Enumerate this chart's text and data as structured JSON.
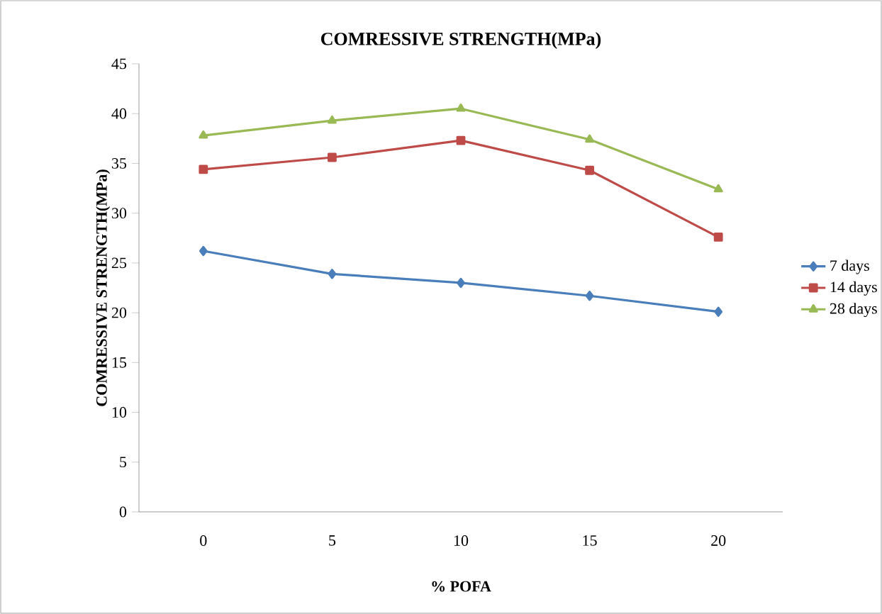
{
  "chart_data": {
    "type": "line",
    "title": "COMRESSIVE STRENGTH(MPa)",
    "xlabel": "% POFA",
    "ylabel": "COMRESSIVE STRENGTH(MPa)",
    "categories": [
      "0",
      "5",
      "10",
      "15",
      "20"
    ],
    "series": [
      {
        "name": "7 days",
        "color": "#4a7ebb",
        "marker": "diamond",
        "values": [
          26.2,
          23.9,
          23.0,
          21.7,
          20.1
        ]
      },
      {
        "name": "14 days",
        "color": "#be4b48",
        "marker": "square",
        "values": [
          34.4,
          35.6,
          37.3,
          34.3,
          27.6
        ]
      },
      {
        "name": "28 days",
        "color": "#98b954",
        "marker": "triangle",
        "values": [
          37.8,
          39.3,
          40.5,
          37.4,
          32.4
        ]
      }
    ],
    "ylim": [
      0,
      45
    ],
    "yticks": [
      0,
      5,
      10,
      15,
      20,
      25,
      30,
      35,
      40,
      45
    ],
    "grid": false,
    "legend": "right"
  }
}
